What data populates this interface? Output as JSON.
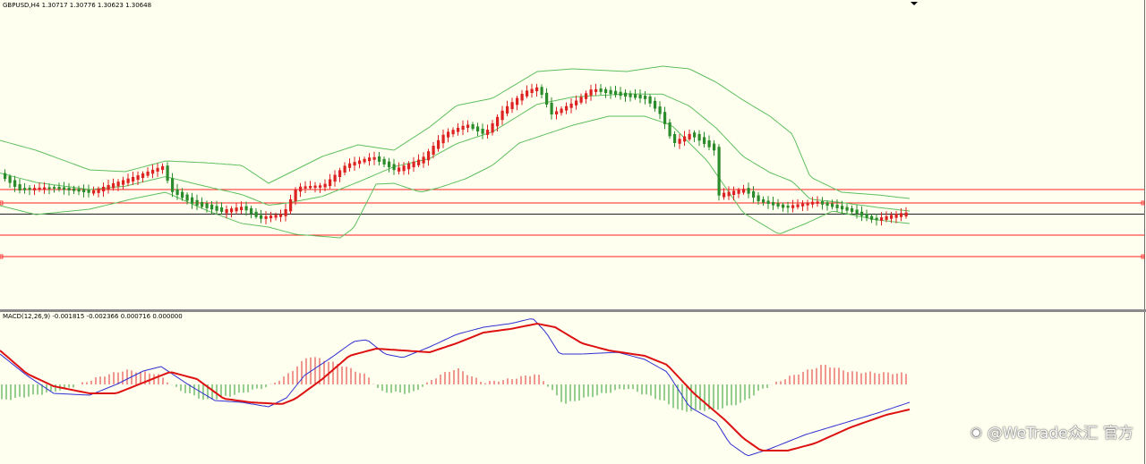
{
  "main_panel": {
    "header": "GBPUSD,H4  1.30717 1.30776 1.30623 1.30648"
  },
  "macd_panel": {
    "header": "MACD(12,26,9) -0.001815 -0.002366 0.000716 0.000000"
  },
  "watermark": {
    "text": "@WeTrade众汇 官方",
    "icon": "weibo-logo-icon"
  },
  "colors": {
    "background": "#fffff0",
    "bull_candle": "#dd2222",
    "bear_candle": "#2a8c2a",
    "bollinger": "#5fbf5f",
    "level_lines": "#ff2020",
    "macd_line": "#3030d0",
    "signal_line": "#dd1111",
    "hist_positive": "#e03030",
    "hist_negative": "#2e9e2e",
    "separator": "#707070"
  },
  "chart_data": [
    {
      "type": "candlestick",
      "symbol": "GBPUSD",
      "timeframe": "H4",
      "last_bar": {
        "open": 1.30717,
        "high": 1.30776,
        "low": 1.30623,
        "close": 1.30648
      },
      "overlays": [
        "Bollinger Bands"
      ],
      "horizontal_levels": 4,
      "grid": false
    },
    {
      "type": "macd",
      "params": [
        12,
        26,
        9
      ],
      "values": {
        "macd": -0.001815,
        "signal": -0.002366,
        "histogram": 0.000716,
        "zero": 0.0
      }
    }
  ]
}
